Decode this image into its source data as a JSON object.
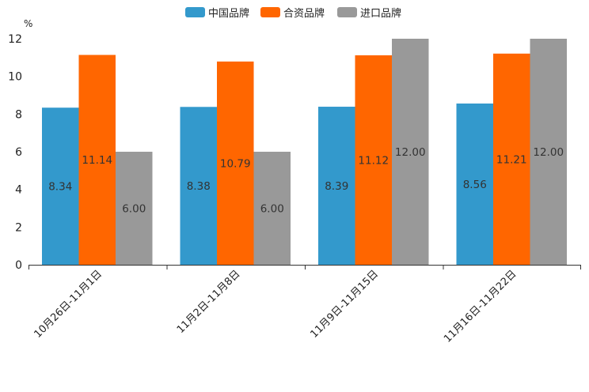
{
  "chart_data": {
    "type": "bar",
    "title": "",
    "xlabel": "",
    "ylabel": "%",
    "ylim": [
      0,
      12
    ],
    "yticks": [
      0,
      2,
      4,
      6,
      8,
      10,
      12
    ],
    "legend_position": "top-center",
    "categories": [
      "10月26日-11月1日",
      "11月2日-11月8日",
      "11月9日-11月15日",
      "11月16日-11月22日"
    ],
    "series": [
      {
        "name": "中国品牌",
        "color": "#3399cc",
        "values": [
          8.34,
          8.38,
          8.39,
          8.56
        ],
        "labels": [
          "8.34",
          "8.38",
          "8.39",
          "8.56"
        ]
      },
      {
        "name": "合资品牌",
        "color": "#ff6600",
        "values": [
          11.14,
          10.79,
          11.12,
          11.21
        ],
        "labels": [
          "11.14",
          "10.79",
          "11.12",
          "11.21"
        ]
      },
      {
        "name": "进口品牌",
        "color": "#999999",
        "values": [
          6.0,
          6.0,
          12.0,
          12.0
        ],
        "labels": [
          "6.00",
          "6.00",
          "12.00",
          "12.00"
        ]
      }
    ]
  }
}
